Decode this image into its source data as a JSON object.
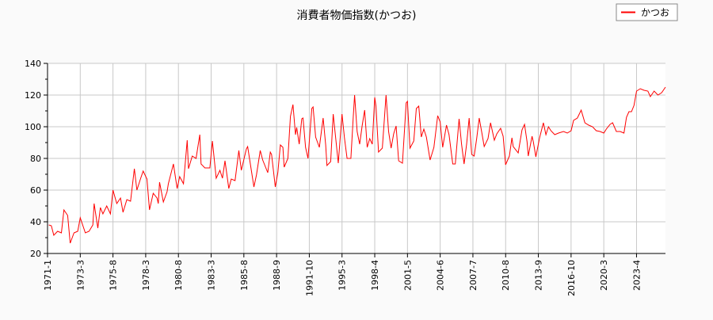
{
  "chart_data": {
    "type": "line",
    "title": "消費者物価指数(かつお)",
    "xlabel": "",
    "ylabel": "",
    "ylim": [
      20,
      140
    ],
    "yticks": [
      20,
      40,
      60,
      80,
      100,
      120,
      140
    ],
    "grid": true,
    "legend_position": "top-right",
    "x_tick_labels": [
      "1971-1",
      "1973-3",
      "1975-8",
      "1978-3",
      "1980-8",
      "1983-3",
      "1985-8",
      "1988-9",
      "1991-10",
      "1995-3",
      "1998-4",
      "2001-5",
      "2004-6",
      "2007-7",
      "2010-8",
      "2013-9",
      "2016-10",
      "2020-3",
      "2023-4"
    ],
    "series": [
      {
        "name": "かつお",
        "color": "#ff0000",
        "points": [
          [
            1,
            38
          ],
          [
            3,
            37.5
          ],
          [
            5,
            31.5
          ],
          [
            8,
            34
          ],
          [
            11,
            33
          ],
          [
            13,
            47.5
          ],
          [
            16,
            44
          ],
          [
            18,
            26.5
          ],
          [
            21,
            33
          ],
          [
            24,
            34
          ],
          [
            26,
            42.5
          ],
          [
            30,
            33
          ],
          [
            33,
            34
          ],
          [
            36,
            38
          ],
          [
            37,
            51.5
          ],
          [
            40,
            36
          ],
          [
            42,
            49
          ],
          [
            44,
            45
          ],
          [
            47,
            50
          ],
          [
            50,
            45
          ],
          [
            52,
            60
          ],
          [
            55,
            51.5
          ],
          [
            58,
            55
          ],
          [
            60,
            46
          ],
          [
            63,
            54
          ],
          [
            66,
            53
          ],
          [
            69,
            73.5
          ],
          [
            71,
            60
          ],
          [
            74,
            67.5
          ],
          [
            76,
            72
          ],
          [
            79,
            67
          ],
          [
            81,
            47.5
          ],
          [
            84,
            58
          ],
          [
            87,
            55
          ],
          [
            88,
            51.5
          ],
          [
            89,
            65
          ],
          [
            92,
            52.5
          ],
          [
            95,
            59
          ],
          [
            96,
            64
          ],
          [
            100,
            76.5
          ],
          [
            103,
            61
          ],
          [
            105,
            68.5
          ],
          [
            108,
            64
          ],
          [
            111,
            91.5
          ],
          [
            112,
            73.5
          ],
          [
            115,
            81.5
          ],
          [
            118,
            80
          ],
          [
            121,
            95
          ],
          [
            122,
            76.5
          ],
          [
            125,
            74
          ],
          [
            129,
            74
          ],
          [
            131,
            91
          ],
          [
            134,
            67.5
          ],
          [
            137,
            72.5
          ],
          [
            139,
            67.5
          ],
          [
            141,
            78.5
          ],
          [
            144,
            61
          ],
          [
            146,
            67
          ],
          [
            149,
            66
          ],
          [
            152,
            85
          ],
          [
            154,
            72.5
          ],
          [
            158,
            86
          ],
          [
            159,
            87.5
          ],
          [
            162,
            72
          ],
          [
            164,
            62
          ],
          [
            166,
            69.5
          ],
          [
            169,
            85
          ],
          [
            171,
            79
          ],
          [
            175,
            71
          ],
          [
            177,
            84
          ],
          [
            178,
            82.5
          ],
          [
            181,
            62
          ],
          [
            183,
            71
          ],
          [
            185,
            88.5
          ],
          [
            187,
            87
          ],
          [
            188,
            74.5
          ],
          [
            191,
            80
          ],
          [
            193,
            106.5
          ],
          [
            195,
            114
          ],
          [
            197,
            95
          ],
          [
            198,
            99.5
          ],
          [
            200,
            89
          ],
          [
            202,
            105
          ],
          [
            203,
            105.5
          ],
          [
            205,
            87
          ],
          [
            207,
            80
          ],
          [
            210,
            111.5
          ],
          [
            211,
            112.5
          ],
          [
            213,
            93.5
          ],
          [
            216,
            87
          ],
          [
            219,
            105.5
          ],
          [
            221,
            88.5
          ],
          [
            222,
            75.5
          ],
          [
            225,
            78
          ],
          [
            227,
            108
          ],
          [
            229,
            92.5
          ],
          [
            231,
            77
          ],
          [
            232,
            87.5
          ],
          [
            234,
            108
          ],
          [
            236,
            92.5
          ],
          [
            238,
            80
          ],
          [
            241,
            80
          ],
          [
            243,
            107
          ],
          [
            244,
            120
          ],
          [
            246,
            97
          ],
          [
            248,
            89
          ],
          [
            250,
            100.5
          ],
          [
            252,
            110.5
          ],
          [
            254,
            87
          ],
          [
            256,
            92.5
          ],
          [
            258,
            89
          ],
          [
            260,
            118.5
          ],
          [
            261,
            113
          ],
          [
            263,
            84
          ],
          [
            266,
            86.5
          ],
          [
            269,
            120
          ],
          [
            271,
            97
          ],
          [
            273,
            86.5
          ],
          [
            275,
            95.5
          ],
          [
            277,
            100.5
          ],
          [
            279,
            78.5
          ],
          [
            282,
            77
          ],
          [
            285,
            115
          ],
          [
            286,
            116
          ],
          [
            288,
            86.5
          ],
          [
            291,
            91
          ],
          [
            293,
            111.5
          ],
          [
            295,
            113
          ],
          [
            297,
            93.5
          ],
          [
            299,
            98.5
          ],
          [
            301,
            93.5
          ],
          [
            304,
            79
          ],
          [
            307,
            87
          ],
          [
            310,
            107
          ],
          [
            312,
            103
          ],
          [
            314,
            87
          ],
          [
            317,
            101
          ],
          [
            319,
            95
          ],
          [
            322,
            76.5
          ],
          [
            324,
            76.5
          ],
          [
            327,
            105
          ],
          [
            329,
            89
          ],
          [
            331,
            76.5
          ],
          [
            333,
            89
          ],
          [
            335,
            105.5
          ],
          [
            337,
            82.5
          ],
          [
            339,
            81.5
          ],
          [
            341,
            92.5
          ],
          [
            343,
            105.5
          ],
          [
            345,
            96.5
          ],
          [
            347,
            87.5
          ],
          [
            350,
            92.5
          ],
          [
            352,
            102.5
          ],
          [
            355,
            91.5
          ],
          [
            357,
            95.5
          ],
          [
            360,
            99
          ],
          [
            362,
            94
          ],
          [
            364,
            76
          ],
          [
            367,
            81.5
          ],
          [
            369,
            93
          ],
          [
            370,
            87.5
          ],
          [
            374,
            83.5
          ],
          [
            377,
            98
          ],
          [
            379,
            101.5
          ],
          [
            381,
            90.5
          ],
          [
            382,
            81.5
          ],
          [
            385,
            94
          ],
          [
            386,
            90.5
          ],
          [
            388,
            81
          ],
          [
            391,
            93
          ],
          [
            394,
            102.5
          ],
          [
            396,
            95
          ],
          [
            398,
            100
          ],
          [
            400,
            97.5
          ],
          [
            403,
            95
          ],
          [
            406,
            96
          ],
          [
            410,
            97
          ],
          [
            413,
            96
          ],
          [
            416,
            97.5
          ],
          [
            418,
            104
          ],
          [
            421,
            105.5
          ],
          [
            424,
            110.5
          ],
          [
            427,
            102.5
          ],
          [
            430,
            101
          ],
          [
            433,
            100
          ],
          [
            436,
            97.5
          ],
          [
            439,
            97
          ],
          [
            442,
            96
          ],
          [
            444,
            98.5
          ],
          [
            447,
            101.5
          ],
          [
            449,
            102.5
          ],
          [
            452,
            97
          ],
          [
            455,
            97
          ],
          [
            458,
            96
          ],
          [
            460,
            106
          ],
          [
            462,
            109.5
          ],
          [
            464,
            109.5
          ],
          [
            466,
            113.5
          ],
          [
            468,
            122.5
          ],
          [
            471,
            124
          ],
          [
            474,
            123
          ],
          [
            477,
            122.5
          ],
          [
            479,
            119
          ],
          [
            482,
            122.5
          ],
          [
            485,
            120
          ],
          [
            488,
            121.5
          ],
          [
            491,
            125
          ]
        ]
      }
    ]
  }
}
